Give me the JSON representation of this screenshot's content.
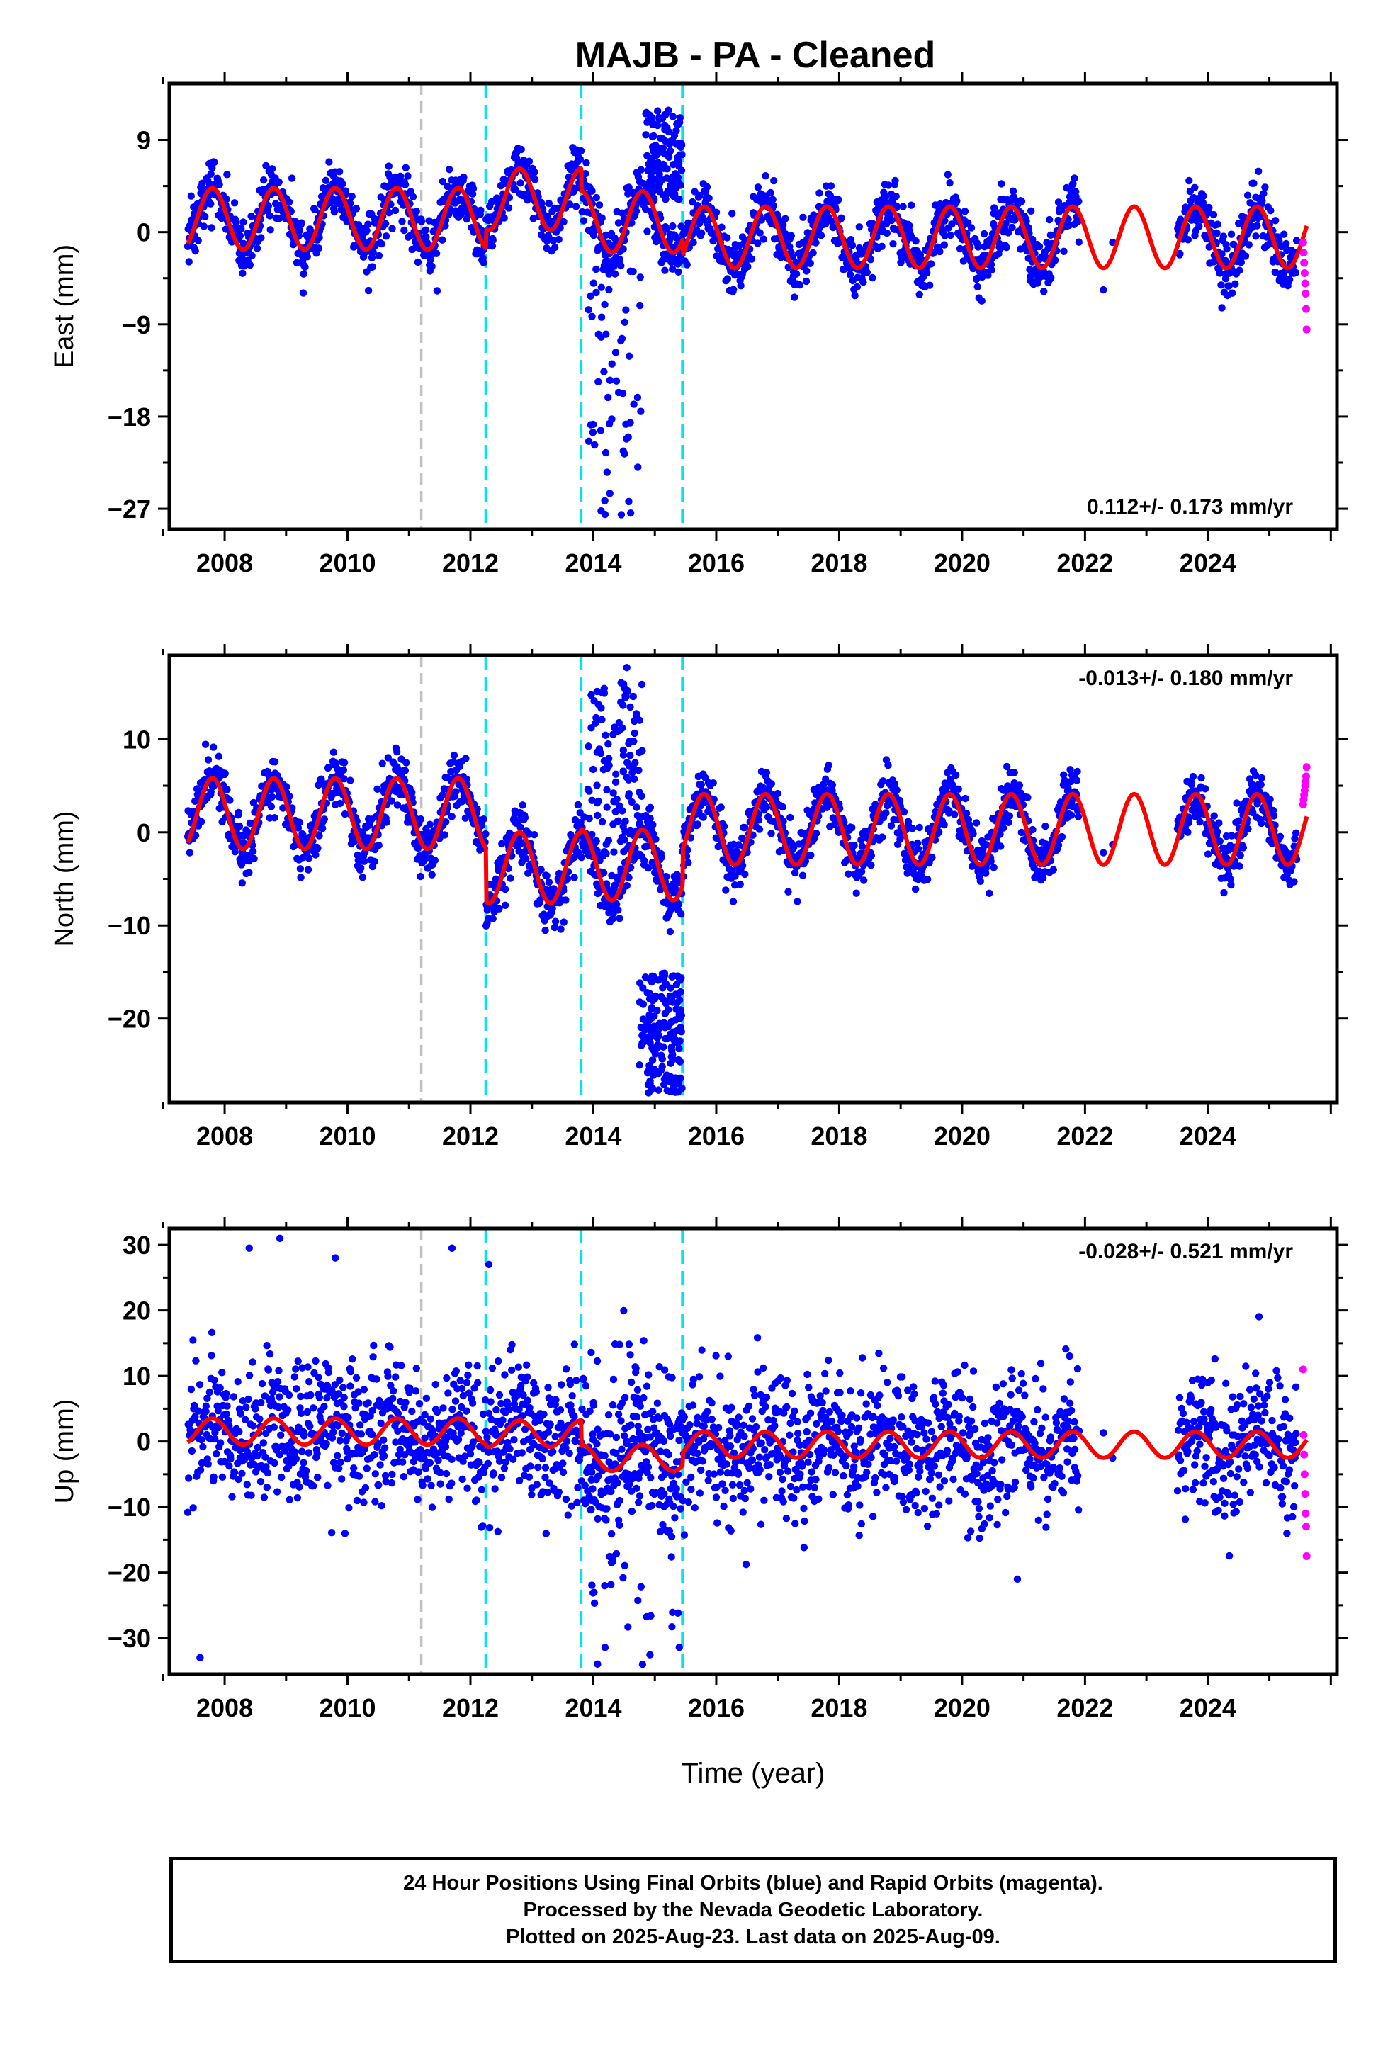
{
  "chart_data": {
    "title": "MAJB  - PA - Cleaned",
    "type": "scatter",
    "xlabel": "Time (year)",
    "xlim": [
      2007.1,
      2026.1
    ],
    "xticks": [
      2008,
      2010,
      2012,
      2014,
      2016,
      2018,
      2020,
      2022,
      2024
    ],
    "xtick_labels": [
      "2008",
      "2010",
      "2012",
      "2014",
      "2016",
      "2018",
      "2020",
      "2022",
      "2024"
    ],
    "data_start": 2007.4,
    "data_end": 2025.61,
    "data_gaps": [
      [
        2021.9,
        2023.5
      ]
    ],
    "rapid_start": 2025.45,
    "offsets_gray": [
      2011.2
    ],
    "offsets_cyan": [
      2012.25,
      2013.8,
      2015.45
    ],
    "colors": {
      "final": "#0000ff",
      "rapid": "#ff00ff",
      "model": "#ff0000",
      "offset_gray": "#c0c0c0",
      "offset_cyan": "#00e5ee"
    },
    "panels": [
      {
        "name": "East",
        "ylabel": "East (mm)",
        "ylim": [
          -29,
          14.5
        ],
        "yticks": [
          9,
          0,
          -9,
          -18,
          -27
        ],
        "ytick_labels": [
          "9",
          "0",
          "−9",
          "−18",
          "−27"
        ],
        "rate_label": "0.112+/- 0.173 mm/yr",
        "rate_position": "bottom-right",
        "seasonal_amplitude": 3,
        "scatter_sd": 1.4,
        "segments": [
          {
            "start": 2007.4,
            "end": 2012.25,
            "offset": 1.3
          },
          {
            "start": 2012.25,
            "end": 2013.8,
            "offset": 3.2
          },
          {
            "start": 2013.8,
            "end": 2015.45,
            "offset": 1.0
          },
          {
            "start": 2015.45,
            "end": 2025.61,
            "offset": -0.5
          }
        ],
        "outlier_bursts": [
          {
            "t_start": 2013.9,
            "t_end": 2014.8,
            "y_min": -28,
            "y_max": -2,
            "count": 60
          },
          {
            "t_start": 2014.85,
            "t_end": 2015.45,
            "y_min": 3,
            "y_max": 12,
            "count": 130
          }
        ],
        "rapid_values": [
          -1,
          -2,
          -3,
          -4,
          -5,
          -6,
          -7.5,
          -9.5
        ]
      },
      {
        "name": "North",
        "ylabel": "North (mm)",
        "ylim": [
          -29,
          19
        ],
        "yticks": [
          10,
          0,
          -10,
          -20
        ],
        "ytick_labels": [
          "10",
          "0",
          "−10",
          "−20"
        ],
        "rate_label": "-0.013+/- 0.180 mm/yr",
        "rate_position": "top-right",
        "seasonal_amplitude": 3.8,
        "scatter_sd": 1.5,
        "segments": [
          {
            "start": 2007.4,
            "end": 2012.25,
            "offset": 2.0
          },
          {
            "start": 2012.25,
            "end": 2013.8,
            "offset": -3.8
          },
          {
            "start": 2013.8,
            "end": 2015.45,
            "offset": -3.5
          },
          {
            "start": 2015.45,
            "end": 2025.61,
            "offset": 0.3
          }
        ],
        "outlier_bursts": [
          {
            "t_start": 2013.9,
            "t_end": 2014.8,
            "y_min": -3,
            "y_max": 18,
            "count": 120
          },
          {
            "t_start": 2014.75,
            "t_end": 2015.45,
            "y_min": -28,
            "y_max": -15,
            "count": 170
          }
        ],
        "rapid_values": [
          3,
          3.5,
          4,
          4.5,
          5,
          5.5,
          6,
          7
        ]
      },
      {
        "name": "Up",
        "ylabel": "Up (mm)",
        "ylim": [
          -35.5,
          32.5
        ],
        "yticks": [
          30,
          20,
          10,
          0,
          -10,
          -20,
          -30
        ],
        "ytick_labels": [
          "30",
          "20",
          "10",
          "0",
          "−10",
          "−20",
          "−30"
        ],
        "rate_label": "-0.028+/- 0.521 mm/yr",
        "rate_position": "top-right",
        "seasonal_amplitude": 2,
        "scatter_sd": 5.2,
        "segments": [
          {
            "start": 2007.4,
            "end": 2012.25,
            "offset": 1.5
          },
          {
            "start": 2012.25,
            "end": 2013.8,
            "offset": 1.2
          },
          {
            "start": 2013.8,
            "end": 2015.45,
            "offset": -2.5
          },
          {
            "start": 2015.45,
            "end": 2025.61,
            "offset": -0.5
          }
        ],
        "outlier_bursts": [
          {
            "t_start": 2013.9,
            "t_end": 2015.4,
            "y_min": -34,
            "y_max": 20,
            "count": 70
          }
        ],
        "extreme_points": [
          {
            "t": 2007.6,
            "y": -33
          },
          {
            "t": 2008.4,
            "y": 29.5
          },
          {
            "t": 2008.9,
            "y": 31
          },
          {
            "t": 2009.8,
            "y": 28
          },
          {
            "t": 2011.7,
            "y": 29.5
          },
          {
            "t": 2012.3,
            "y": 27
          },
          {
            "t": 2014.8,
            "y": -34
          },
          {
            "t": 2020.9,
            "y": -21
          }
        ],
        "rapid_values": [
          11,
          1,
          -2,
          -5,
          -8,
          -11,
          -13,
          -17.5
        ]
      }
    ]
  },
  "footer": {
    "line1": "24 Hour Positions Using Final Orbits (blue) and Rapid Orbits (magenta).",
    "line2": "Processed by the Nevada Geodetic Laboratory.",
    "line3": "Plotted on 2025-Aug-23. Last data on 2025-Aug-09."
  }
}
